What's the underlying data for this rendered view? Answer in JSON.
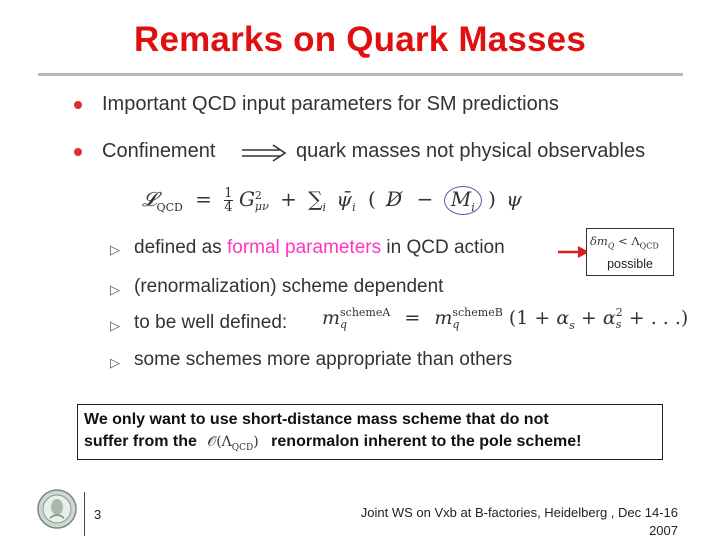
{
  "slide": {
    "title": "Remarks on Quark Masses",
    "bullets": [
      "Important QCD input parameters for SM predictions",
      "Confinement"
    ],
    "implies_text": "quark masses not physical observables",
    "lagrangian": {
      "lhs": "𝓛",
      "lhs_sub": "QCD",
      "eq": "=",
      "frac_num": "1",
      "frac_den": "4",
      "G": "G",
      "G_sup": "2",
      "G_sub": "μν",
      "plus": "+",
      "sum": "∑",
      "sum_sub": "i",
      "psibar": "ψ̄",
      "psibar_sub": "i",
      "paren_open": "(",
      "slash_D": "D̸",
      "minus": "−",
      "M": "M",
      "M_sub": "i",
      "paren_close": ")",
      "psi": "ψ"
    },
    "sub_items": {
      "defined_prefix": "defined as",
      "defined_highlight": "formal parameters",
      "defined_suffix": "in QCD action",
      "scheme_dep": "(renormalization) scheme dependent",
      "well_defined": "to be well defined:",
      "some_schemes": "some schemes more appropriate than others"
    },
    "well_defined_eq": {
      "m": "m",
      "supA": "schemeA",
      "subA": "q",
      "eq": "=",
      "supB": "schemeB",
      "subB": "q",
      "open": "(1 + ",
      "alpha": "α",
      "alpha_sub": "s",
      "plus": " + ",
      "alpha2_sup": "2",
      "rest": " + . . .)"
    },
    "callout": {
      "delta": "δm",
      "sub": "Q",
      "lt": "<",
      "lambda": "Λ",
      "lambda_sub": "QCD",
      "label": "possible"
    },
    "boxed_note": {
      "line1": "We only want to use short-distance mass scheme that do not",
      "line2_prefix": "suffer from the",
      "O": "𝒪",
      "paren_open": "(Λ",
      "lambda_sub": "QCD",
      "paren_close": ")",
      "line2_suffix": "renormalon inherent to the pole scheme!"
    },
    "footer": {
      "page_number": "3",
      "event_line1": "Joint WS on Vxb at B-factories, Heidelberg , Dec 14-16",
      "event_line2": "2007"
    },
    "colors": {
      "title": "#e01010",
      "highlight": "#ff33c4",
      "bullet": "#d83030",
      "arrow": "#d82020",
      "circle": "#5a5aa8"
    },
    "icons": [
      "university-seal-icon",
      "implies-arrow-icon",
      "triangle-bullet-icon",
      "red-arrow-icon"
    ]
  }
}
